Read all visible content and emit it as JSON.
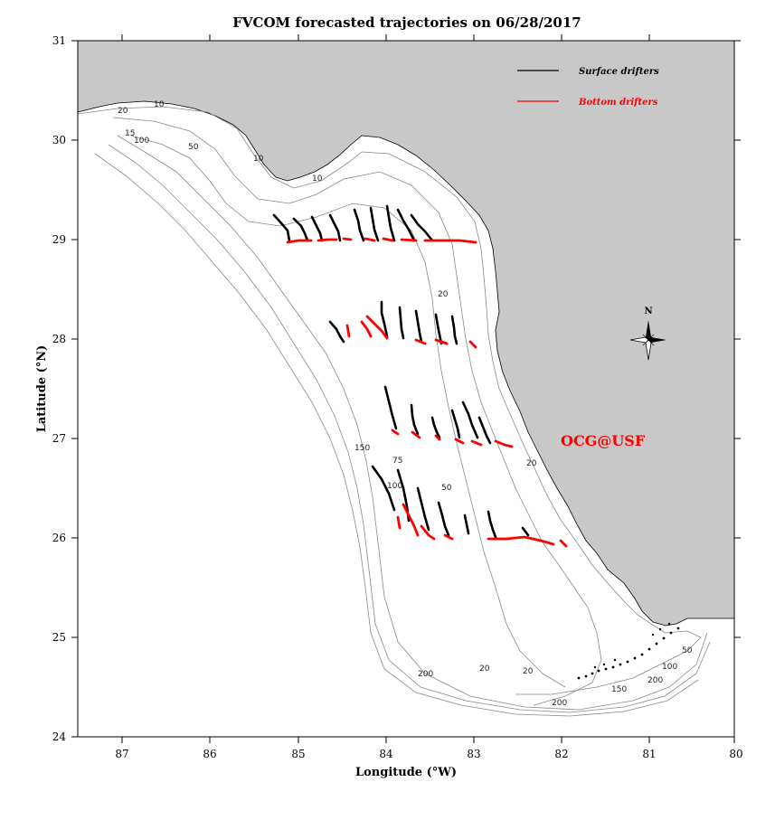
{
  "title": "FVCOM forecasted trajectories on 06/28/2017",
  "x_axis": {
    "label": "Longitude (°W)",
    "ticks": [
      "87",
      "86",
      "85",
      "84",
      "83",
      "82",
      "81",
      "80"
    ]
  },
  "y_axis": {
    "label": "Latitude (°N)",
    "ticks": [
      "31",
      "30",
      "29",
      "28",
      "27",
      "26",
      "25",
      "24"
    ]
  },
  "legend": {
    "surface": {
      "label": "Surface drifters",
      "color": "#000000"
    },
    "bottom": {
      "label": "Bottom drifters",
      "color": "#ff0000"
    }
  },
  "compass": {
    "label": "N"
  },
  "brand": {
    "label": "OCG@USF",
    "color": "#ff0000"
  },
  "colors": {
    "land": "#c8c8c8",
    "contour": "#888888",
    "surface": "#000000",
    "bottom": "#ff0000"
  },
  "contour_labels": [
    "20",
    "15",
    "100",
    "10",
    "50",
    "10",
    "20",
    "10",
    "150",
    "75",
    "100",
    "50",
    "200",
    "20",
    "20",
    "200",
    "150",
    "100",
    "20",
    "50",
    "200"
  ]
}
